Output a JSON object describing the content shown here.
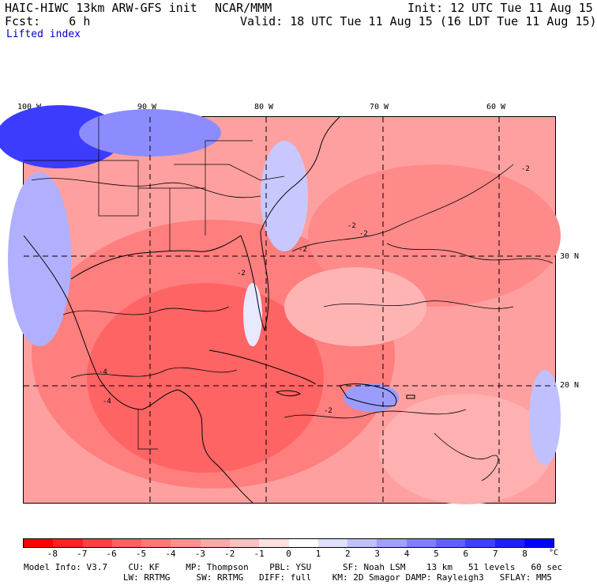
{
  "header": {
    "model": "HAIC-HIWC 13km ARW-GFS init",
    "org": "NCAR/MMM",
    "init": "Init: 12 UTC Tue 11 Aug 15",
    "fcst": "Fcst:    6 h",
    "valid": "Valid: 18 UTC Tue 11 Aug 15 (16 LDT Tue 11 Aug 15)",
    "field": "Lifted index"
  },
  "axes": {
    "lon_labels": [
      "100 W",
      "90 W",
      "80 W",
      "70 W",
      "60 W"
    ],
    "lat_labels": [
      "30 N",
      "20 N"
    ]
  },
  "contour_labels": [
    "-2",
    "-2",
    "-2",
    "-2",
    "-4",
    "-4",
    "-2",
    "-2"
  ],
  "legend": {
    "ticks": [
      "-8",
      "-7",
      "-6",
      "-5",
      "-4",
      "-3",
      "-2",
      "-1",
      "0",
      "1",
      "2",
      "3",
      "4",
      "5",
      "6",
      "7",
      "8"
    ],
    "unit": "°C",
    "colors": [
      "#ff0000",
      "#ff2020",
      "#ff4040",
      "#ff6060",
      "#ff7878",
      "#ff9090",
      "#ffa8a8",
      "#ffc0c0",
      "#ffe0e0",
      "#ffffff",
      "#e0e0ff",
      "#c0c0ff",
      "#a0a0ff",
      "#8080ff",
      "#6060ff",
      "#4040ff",
      "#2020ff",
      "#0000ff"
    ]
  },
  "model_info": {
    "line1": "Model Info: V3.7    CU: KF     MP: Thompson    PBL: YSU      SF: Noah LSM    13 km   51 levels   60 sec",
    "line2": "                   LW: RRTMG     SW: RRTMG   DIFF: full    KM: 2D Smagor DAMP: Rayleigh3   SFLAY: MM5"
  }
}
